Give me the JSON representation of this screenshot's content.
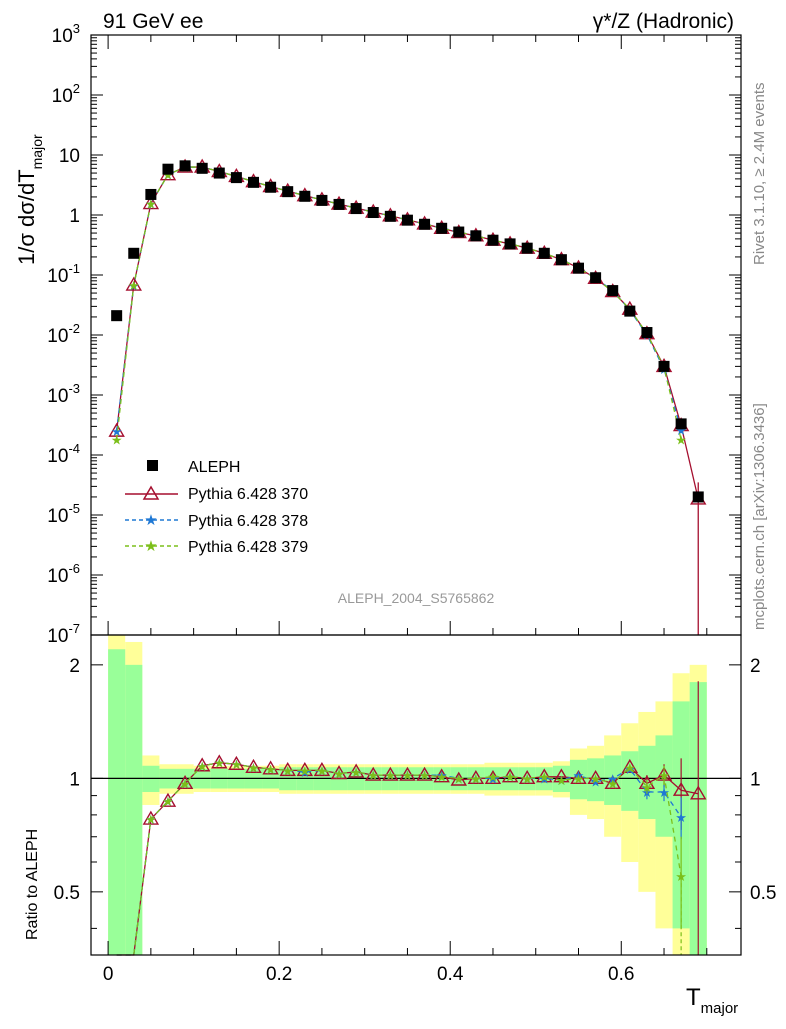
{
  "header": {
    "left_title": "91 GeV ee",
    "right_title": "γ*/Z (Hadronic)"
  },
  "side_texts": {
    "rivet": "Rivet 3.1.10, ≥ 2.4M events",
    "mcplots": "mcplots.cern.ch [arXiv:1306.3436]"
  },
  "watermark": "ALEPH_2004_S5765862",
  "axes": {
    "ylabel_top": "1/σ  dσ/dT",
    "ylabel_top_sub": "major",
    "ylabel_bottom": "Ratio to ALEPH",
    "xlabel": "T",
    "xlabel_sub": "major",
    "x_tick_labels": [
      "0",
      "0.2",
      "0.4",
      "0.6"
    ],
    "ratio_tick_labels": [
      "2",
      "1",
      "0.5"
    ]
  },
  "legend": [
    {
      "label": "ALEPH",
      "color": "#000000"
    },
    {
      "label": "Pythia 6.428 370",
      "color": "#a50f2f"
    },
    {
      "label": "Pythia 6.428 378",
      "color": "#1f78d4"
    },
    {
      "label": "Pythia 6.428 379",
      "color": "#7cbf1a"
    }
  ],
  "chart_data": {
    "type": "line",
    "xlabel": "T_major",
    "ylabel": "1/σ dσ/dT_major",
    "xlim": [
      -0.02,
      0.74
    ],
    "ylim": [
      1e-07,
      1000
    ],
    "yscale": "log",
    "ratio_ylim": [
      0.34,
      2.4
    ],
    "ratio_yscale": "log",
    "x": [
      0.01,
      0.03,
      0.05,
      0.07,
      0.09,
      0.11,
      0.13,
      0.15,
      0.17,
      0.19,
      0.21,
      0.23,
      0.25,
      0.27,
      0.29,
      0.31,
      0.33,
      0.35,
      0.37,
      0.39,
      0.41,
      0.43,
      0.45,
      0.47,
      0.49,
      0.51,
      0.53,
      0.55,
      0.57,
      0.59,
      0.61,
      0.63,
      0.65,
      0.67,
      0.69
    ],
    "data": {
      "name": "ALEPH",
      "values": [
        0.021,
        0.23,
        2.2,
        5.8,
        6.6,
        6.0,
        5.0,
        4.2,
        3.5,
        2.9,
        2.45,
        2.05,
        1.75,
        1.5,
        1.28,
        1.1,
        0.95,
        0.82,
        0.7,
        0.6,
        0.52,
        0.45,
        0.38,
        0.33,
        0.28,
        0.23,
        0.18,
        0.13,
        0.09,
        0.055,
        0.025,
        0.011,
        0.003,
        0.00033,
        2e-05
      ],
      "stat_band": [
        1.2,
        1.0,
        0.08,
        0.06,
        0.06,
        0.06,
        0.06,
        0.06,
        0.06,
        0.06,
        0.07,
        0.07,
        0.07,
        0.07,
        0.07,
        0.07,
        0.07,
        0.07,
        0.07,
        0.07,
        0.07,
        0.07,
        0.07,
        0.07,
        0.07,
        0.07,
        0.08,
        0.12,
        0.13,
        0.15,
        0.18,
        0.22,
        0.3,
        0.6,
        0.8
      ],
      "total_band": [
        1.6,
        1.3,
        0.15,
        0.09,
        0.09,
        0.08,
        0.08,
        0.08,
        0.08,
        0.08,
        0.09,
        0.09,
        0.09,
        0.09,
        0.09,
        0.09,
        0.09,
        0.09,
        0.09,
        0.09,
        0.09,
        0.09,
        0.1,
        0.1,
        0.1,
        0.1,
        0.11,
        0.2,
        0.22,
        0.3,
        0.4,
        0.5,
        0.6,
        0.9,
        1.0
      ]
    },
    "series": [
      {
        "name": "Pythia 6.428 370",
        "values": [
          0.00025,
          0.068,
          1.55,
          4.7,
          6.3,
          6.3,
          5.3,
          4.4,
          3.6,
          2.98,
          2.5,
          2.1,
          1.79,
          1.52,
          1.3,
          1.12,
          0.97,
          0.83,
          0.71,
          0.6,
          0.51,
          0.45,
          0.38,
          0.33,
          0.28,
          0.23,
          0.18,
          0.131,
          0.088,
          0.053,
          0.027,
          0.0105,
          0.003,
          0.00031,
          1.85e-05
        ],
        "ratio": [
          0.012,
          0.3,
          0.78,
          0.87,
          0.97,
          1.08,
          1.1,
          1.09,
          1.07,
          1.06,
          1.05,
          1.05,
          1.05,
          1.03,
          1.04,
          1.02,
          1.02,
          1.02,
          1.02,
          1.01,
          0.99,
          1.0,
          1.0,
          1.01,
          1.0,
          1.01,
          1.01,
          1.0,
          1.0,
          0.97,
          1.07,
          0.97,
          1.02,
          0.93,
          0.91
        ],
        "ratio_err": [
          0,
          0,
          0,
          0,
          0,
          0,
          0,
          0,
          0,
          0,
          0,
          0,
          0,
          0,
          0,
          0,
          0,
          0,
          0,
          0,
          0,
          0,
          0,
          0,
          0,
          0,
          0,
          0,
          0,
          0,
          0,
          0.05,
          0.07,
          0.2,
          0.9
        ]
      },
      {
        "name": "Pythia 6.428 378",
        "values": [
          0.00025,
          0.067,
          1.55,
          4.7,
          6.3,
          6.3,
          5.3,
          4.4,
          3.6,
          2.98,
          2.5,
          2.1,
          1.79,
          1.52,
          1.3,
          1.12,
          0.97,
          0.83,
          0.71,
          0.61,
          0.52,
          0.45,
          0.38,
          0.33,
          0.28,
          0.23,
          0.18,
          0.133,
          0.088,
          0.055,
          0.026,
          0.0101,
          0.0027,
          0.00026,
          0.0
        ],
        "ratio": [
          0.012,
          0.3,
          0.78,
          0.87,
          0.97,
          1.08,
          1.1,
          1.09,
          1.07,
          1.06,
          1.05,
          1.04,
          1.05,
          1.03,
          1.04,
          1.02,
          1.02,
          1.02,
          1.02,
          1.02,
          1.0,
          1.0,
          1.0,
          1.01,
          1.0,
          1.0,
          0.99,
          1.02,
          0.98,
          1.0,
          1.06,
          0.92,
          0.92,
          0.79,
          null
        ],
        "ratio_err": [
          0,
          0,
          0,
          0,
          0,
          0,
          0,
          0,
          0,
          0,
          0,
          0,
          0,
          0,
          0,
          0,
          0,
          0,
          0,
          0,
          0,
          0,
          0,
          0,
          0,
          0,
          0,
          0,
          0,
          0,
          0,
          0.04,
          0.05,
          0.1,
          0
        ]
      },
      {
        "name": "Pythia 6.428 379",
        "values": [
          0.00018,
          0.068,
          1.55,
          4.7,
          6.3,
          6.3,
          5.3,
          4.4,
          3.6,
          2.98,
          2.5,
          2.1,
          1.79,
          1.52,
          1.3,
          1.12,
          0.97,
          0.83,
          0.71,
          0.6,
          0.52,
          0.45,
          0.38,
          0.33,
          0.28,
          0.23,
          0.18,
          0.131,
          0.088,
          0.053,
          0.027,
          0.0105,
          0.0029,
          0.00018,
          0.0
        ],
        "ratio": [
          0.009,
          0.3,
          0.78,
          0.87,
          0.97,
          1.08,
          1.1,
          1.09,
          1.07,
          1.06,
          1.05,
          1.05,
          1.05,
          1.03,
          1.04,
          1.02,
          1.02,
          1.02,
          1.02,
          1.01,
          1.0,
          1.0,
          1.01,
          1.01,
          1.0,
          1.01,
          0.99,
          1.0,
          1.0,
          0.97,
          1.07,
          0.95,
          1.02,
          0.55,
          null
        ],
        "ratio_err": [
          0,
          0,
          0,
          0,
          0,
          0,
          0,
          0,
          0,
          0,
          0,
          0,
          0,
          0,
          0,
          0,
          0,
          0,
          0,
          0,
          0,
          0,
          0,
          0,
          0,
          0,
          0,
          0,
          0,
          0,
          0,
          0.04,
          0.06,
          0.15,
          0
        ]
      }
    ]
  }
}
